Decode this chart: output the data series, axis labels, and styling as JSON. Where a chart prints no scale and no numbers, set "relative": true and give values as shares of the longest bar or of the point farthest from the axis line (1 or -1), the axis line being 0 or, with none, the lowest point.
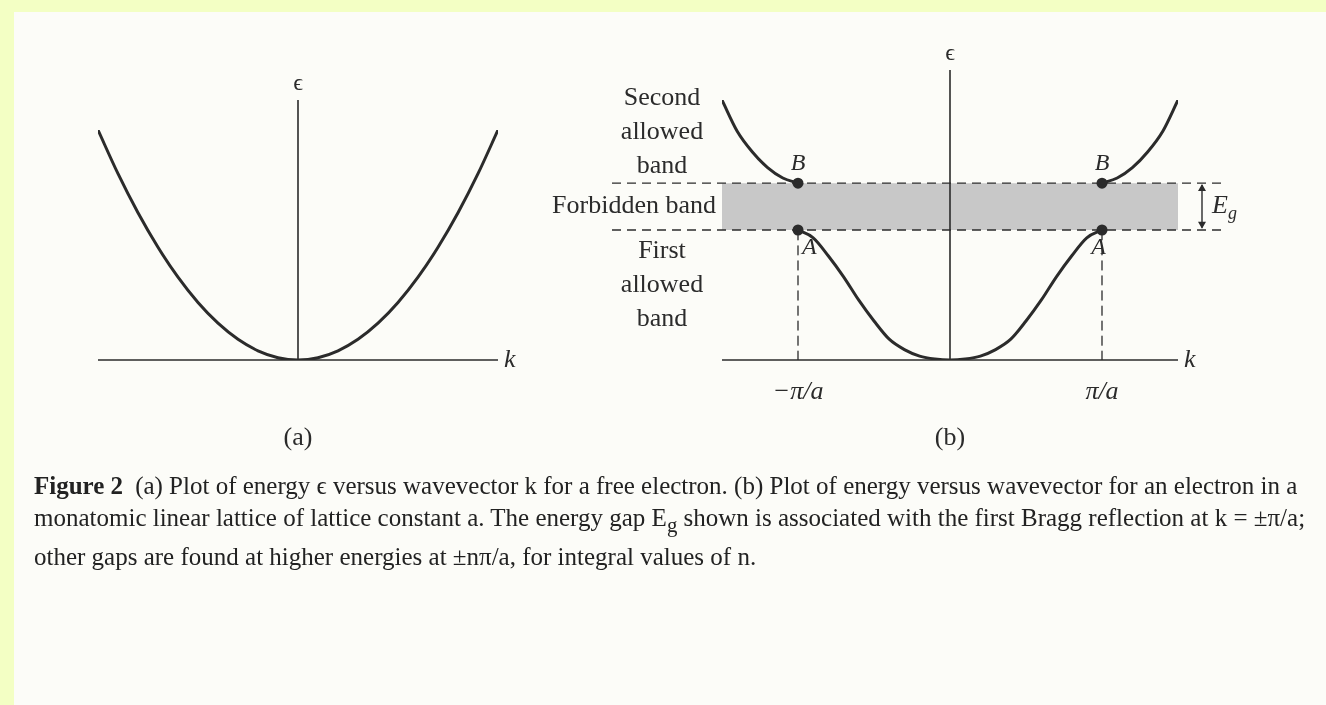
{
  "chart_data": [
    {
      "type": "line",
      "title": "(a)",
      "xlabel": "k",
      "ylabel": "ϵ",
      "relative": true,
      "marker": "none",
      "line_style": "solid",
      "categories": [
        null,
        null,
        null,
        null,
        null,
        null,
        null,
        null,
        null,
        null,
        null,
        null,
        null,
        null,
        null,
        null,
        null,
        null,
        null,
        null,
        null
      ],
      "series": [
        {
          "color": "#2b2b2b",
          "values": [
            1,
            0.81,
            0.64,
            0.49,
            0.36,
            0.25,
            0.16,
            0.09,
            0.04,
            0.01,
            0,
            0.01,
            0.04,
            0.09,
            0.16,
            0.25,
            0.36,
            0.49,
            0.64,
            0.81,
            1
          ]
        }
      ]
    },
    {
      "type": "line",
      "title": "(b)",
      "xlabel": "k",
      "ylabel": "ϵ",
      "relative": true,
      "marker": "none",
      "line_style": "solid",
      "categories": [
        null,
        null,
        null,
        null,
        null,
        "−π/a",
        null,
        null,
        null,
        null,
        null,
        null,
        null,
        null,
        null,
        null,
        null,
        null,
        null,
        null,
        null,
        null,
        null,
        null,
        null,
        "π/a",
        null,
        null,
        null,
        null,
        null
      ],
      "series": [
        {
          "color": "#2b2b2b",
          "values": [
            1,
            0.88,
            0.8,
            0.74,
            0.7,
            0.68,
            null,
            null,
            null,
            null,
            null,
            null,
            null,
            null,
            null,
            null,
            null,
            null,
            null,
            null,
            null,
            null,
            null,
            null,
            null,
            null,
            null,
            null,
            null,
            null,
            null
          ]
        },
        {
          "color": "#2b2b2b",
          "values": [
            null,
            null,
            null,
            null,
            null,
            0.5,
            0.47,
            0.4,
            0.32,
            0.23,
            0.15,
            0.08,
            0.04,
            0.015,
            0.004,
            0,
            0.004,
            0.015,
            0.04,
            0.08,
            0.15,
            0.23,
            0.32,
            0.4,
            0.47,
            0.5,
            null,
            null,
            null,
            null,
            null
          ]
        },
        {
          "color": "#2b2b2b",
          "values": [
            null,
            null,
            null,
            null,
            null,
            null,
            null,
            null,
            null,
            null,
            null,
            null,
            null,
            null,
            null,
            null,
            null,
            null,
            null,
            null,
            null,
            null,
            null,
            null,
            null,
            0.68,
            0.7,
            0.74,
            0.8,
            0.88,
            1
          ]
        },
        {
          "color": "#2b2b2b",
          "line_style": "dashed",
          "x": [
            "−π/a",
            "−π/a"
          ],
          "values": [
            0,
            0.5
          ]
        },
        {
          "color": "#2b2b2b",
          "line_style": "dashed",
          "x": [
            "π/a",
            "π/a"
          ],
          "values": [
            0,
            0.5
          ]
        },
        {
          "type": "scatter",
          "marker": "circle",
          "color": "#2b2b2b",
          "x": [
            "−π/a",
            "π/a",
            "−π/a",
            "π/a"
          ],
          "values": [
            0.5,
            0.5,
            0.68,
            0.68
          ]
        }
      ],
      "bands": [
        {
          "axis": "y",
          "from": 0.5,
          "to": 0.68,
          "label": "Forbidden band",
          "color": "#c8c8c8"
        }
      ],
      "ref_lines": [
        {
          "axis": "y",
          "value": 0.5,
          "line_style": "dashed"
        },
        {
          "axis": "y",
          "value": 0.68,
          "line_style": "dashed"
        }
      ],
      "annotations": [
        "Second allowed band",
        "First allowed band",
        "E$_{g}$",
        {
          "text": "A",
          "x": "−π/a",
          "y": 0.5
        },
        {
          "text": "A",
          "x": "π/a",
          "y": 0.5
        },
        {
          "text": "B",
          "x": "−π/a",
          "y": 0.68
        },
        {
          "text": "B",
          "x": "π/a",
          "y": 0.68
        }
      ]
    },
    {
      "type": "other",
      "annotations": [
        "Figure 2",
        "(a) Plot of energy ϵ versus wavevector k for a free electron. (b) Plot of energy versus wavevector for an electron in a monatomic linear lattice of lattice constant a. The energy gap E$_{g}$ shown is associated with the first Bragg reflection at k = ±π/a; other gaps are found at higher energies at ±nπ/a, for integral values of n."
      ]
    }
  ]
}
